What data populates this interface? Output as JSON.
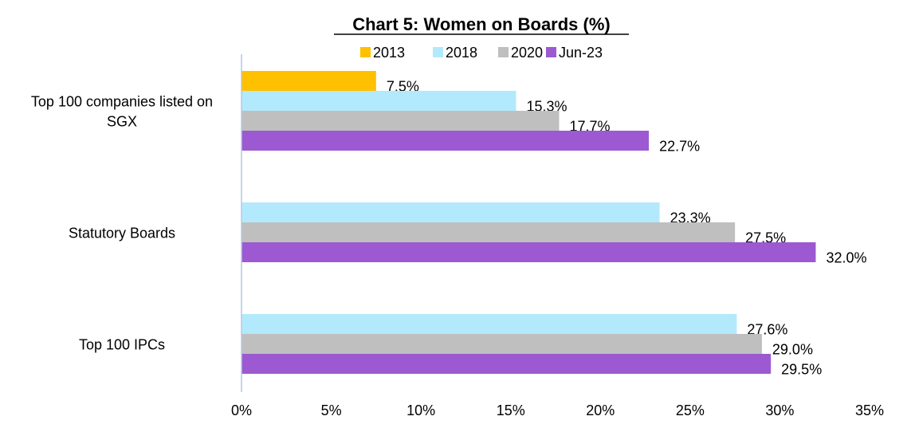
{
  "chart_data": {
    "type": "bar",
    "orientation": "horizontal",
    "title": "Chart 5: Women on Boards (%)",
    "categories": [
      "Top 100 companies listed on SGX",
      "Statutory Boards",
      "Top 100 IPCs"
    ],
    "category_lines": [
      [
        "Top 100 companies listed on",
        "SGX"
      ],
      [
        "Statutory Boards"
      ],
      [
        "Top 100 IPCs"
      ]
    ],
    "series": [
      {
        "name": "2013",
        "color": "#FFC000",
        "values": [
          7.5,
          null,
          null
        ],
        "labels": [
          "7.5%",
          null,
          null
        ]
      },
      {
        "name": "2018",
        "color": "#B3E9FC",
        "values": [
          15.3,
          23.3,
          27.6
        ],
        "labels": [
          "15.3%",
          "23.3%",
          "27.6%"
        ]
      },
      {
        "name": "2020",
        "color": "#BFBFBF",
        "values": [
          17.7,
          27.5,
          29.0
        ],
        "labels": [
          "17.7%",
          "27.5%",
          "29.0%"
        ]
      },
      {
        "name": "Jun-23",
        "color": "#9C59D1",
        "values": [
          22.7,
          32.0,
          29.5
        ],
        "labels": [
          "22.7%",
          "32.0%",
          "29.5%"
        ]
      }
    ],
    "x_ticks": [
      0,
      5,
      10,
      15,
      20,
      25,
      30,
      35
    ],
    "x_tick_labels": [
      "0%",
      "5%",
      "10%",
      "15%",
      "20%",
      "25%",
      "30%",
      "35%"
    ],
    "xlim": [
      0,
      35
    ],
    "legend_position": "top",
    "grid": false
  }
}
